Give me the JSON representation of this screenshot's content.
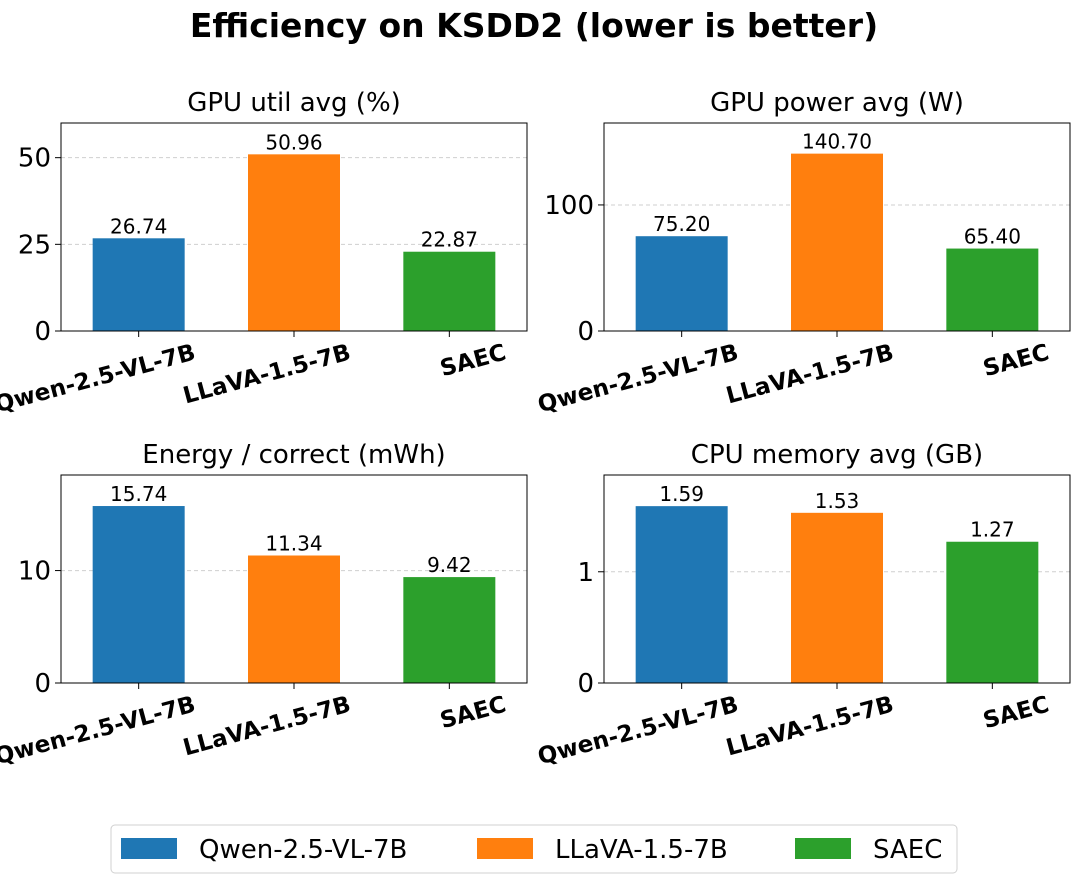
{
  "title": "Efficiency on KSDD2 (lower is better)",
  "legend": {
    "placement": "bottom-center",
    "entries": [
      {
        "label": "Qwen-2.5-VL-7B",
        "color": "#1f77b4"
      },
      {
        "label": "LLaVA-1.5-7B",
        "color": "#ff7f0e"
      },
      {
        "label": "SAEC",
        "color": "#2ca02c"
      }
    ]
  },
  "chart_data": [
    {
      "type": "bar",
      "title": "GPU util avg (%)",
      "categories": [
        "Qwen-2.5-VL-7B",
        "LLaVA-1.5-7B",
        "SAEC"
      ],
      "values": [
        26.74,
        50.96,
        22.87
      ],
      "value_labels": [
        "26.74",
        "50.96",
        "22.87"
      ],
      "colors": [
        "#1f77b4",
        "#ff7f0e",
        "#2ca02c"
      ],
      "ylim": [
        0,
        60
      ],
      "yticks": [
        0,
        25,
        50
      ],
      "grid": true
    },
    {
      "type": "bar",
      "title": "GPU power avg (W)",
      "categories": [
        "Qwen-2.5-VL-7B",
        "LLaVA-1.5-7B",
        "SAEC"
      ],
      "values": [
        75.2,
        140.7,
        65.4
      ],
      "value_labels": [
        "75.20",
        "140.70",
        "65.40"
      ],
      "colors": [
        "#1f77b4",
        "#ff7f0e",
        "#2ca02c"
      ],
      "ylim": [
        0,
        165
      ],
      "yticks": [
        0,
        100
      ],
      "grid": true
    },
    {
      "type": "bar",
      "title": "Energy / correct (mWh)",
      "categories": [
        "Qwen-2.5-VL-7B",
        "LLaVA-1.5-7B",
        "SAEC"
      ],
      "values": [
        15.74,
        11.34,
        9.42
      ],
      "value_labels": [
        "15.74",
        "11.34",
        "9.42"
      ],
      "colors": [
        "#1f77b4",
        "#ff7f0e",
        "#2ca02c"
      ],
      "ylim": [
        0,
        18.5
      ],
      "yticks": [
        0,
        10
      ],
      "grid": true
    },
    {
      "type": "bar",
      "title": "CPU memory avg (GB)",
      "categories": [
        "Qwen-2.5-VL-7B",
        "LLaVA-1.5-7B",
        "SAEC"
      ],
      "values": [
        1.59,
        1.53,
        1.27
      ],
      "value_labels": [
        "1.59",
        "1.53",
        "1.27"
      ],
      "colors": [
        "#1f77b4",
        "#ff7f0e",
        "#2ca02c"
      ],
      "ylim": [
        0,
        1.87
      ],
      "yticks": [
        0,
        1
      ],
      "grid": true
    }
  ]
}
